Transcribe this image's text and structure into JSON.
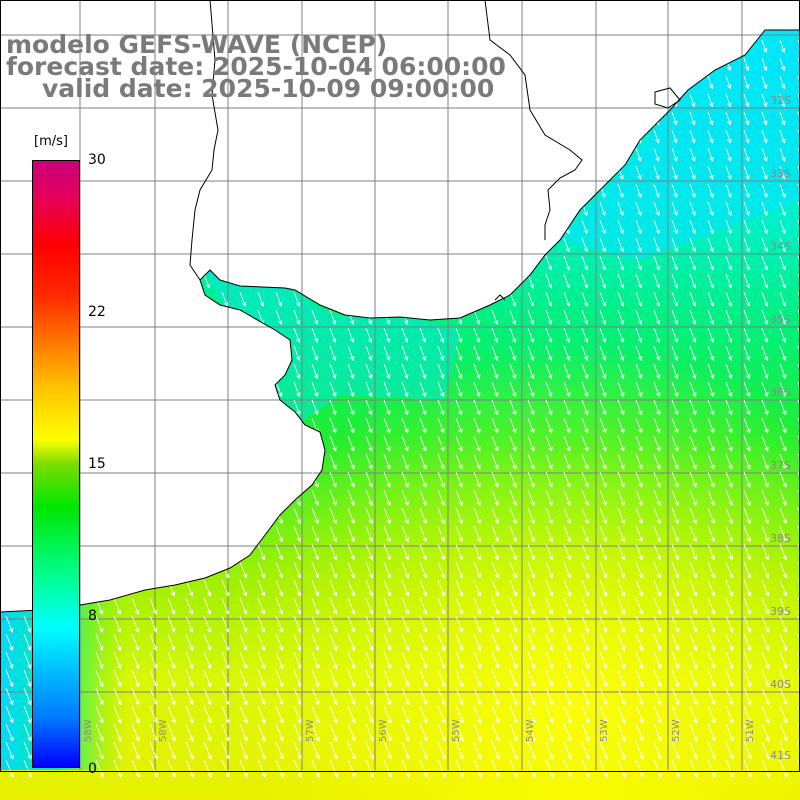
{
  "title": {
    "line1": "modelo GEFS-WAVE (NCEP)",
    "line2": "forecast date: 2025-10-04 06:00:00",
    "line3": "valid date: 2025-10-09 09:00:00"
  },
  "colorbar": {
    "units": "[m/s]",
    "ticks": [
      "30",
      "22",
      "15",
      "8",
      "0"
    ],
    "colors": [
      "#0000ff",
      "#00ffff",
      "#00e600",
      "#ffff00",
      "#ff0000",
      "#c8007a"
    ]
  },
  "lat_labels": [
    "32S",
    "33S",
    "34S",
    "35S",
    "36S",
    "37S",
    "38S",
    "39S",
    "40S",
    "41S"
  ],
  "lon_labels": [
    "58W",
    "57W",
    "56W",
    "55W",
    "54W",
    "53W",
    "52W",
    "51W"
  ],
  "colors": {
    "land": "#ffffff",
    "coast": "#000000",
    "grid": "#808080",
    "arrow": "#ffffff",
    "title": "#7a7a7a"
  },
  "field": {
    "description_values_m_s": "wind speed field",
    "north_sector": 7,
    "central_sector": 11,
    "southeast_sector": 16,
    "southwest_sector": 10,
    "direction": "toward south-southeast"
  }
}
